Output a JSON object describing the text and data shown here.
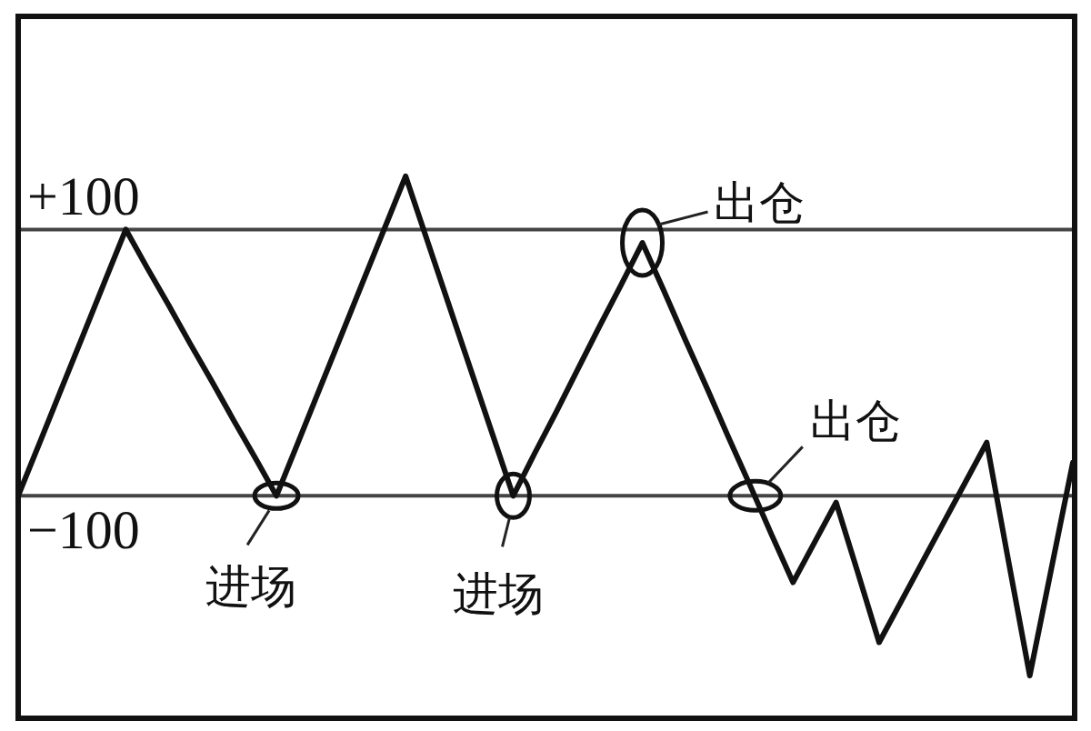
{
  "chart_data": {
    "type": "line",
    "categories": [
      null,
      null,
      null,
      null,
      null,
      null,
      null,
      null,
      null,
      null,
      null,
      null,
      null,
      null,
      null,
      null,
      null,
      null,
      null,
      null,
      null,
      null,
      null,
      null,
      null,
      null,
      null,
      null,
      null,
      null,
      null,
      null,
      null,
      null,
      null,
      null,
      null,
      null,
      null,
      null,
      null,
      null,
      null,
      null,
      null,
      null,
      null,
      null,
      null,
      null
    ],
    "series": [
      {
        "color": "#111111",
        "values": [
          -100,
          -60,
          -20,
          20,
          60,
          100,
          71,
          43,
          14,
          -14,
          -43,
          -71,
          -100,
          -60,
          -20,
          20,
          60,
          100,
          140,
          92,
          44,
          -4,
          -52,
          -100,
          -68,
          -37,
          -5,
          27,
          58,
          90,
          54,
          17,
          -19,
          -56,
          -92,
          -129,
          -165,
          -135,
          -105,
          -157,
          -210,
          -180,
          -150,
          -120,
          -90,
          -60,
          -148,
          -235,
          -155,
          -75
        ]
      }
    ],
    "ylim": [
      -267,
      260
    ],
    "ref_lines": [
      {
        "axis": "y",
        "value": 100,
        "label": "+100",
        "color": "#444444"
      },
      {
        "axis": "y",
        "value": -100,
        "label": "−100",
        "color": "#444444"
      }
    ],
    "annotations": [
      {
        "text": "进场",
        "y": -100
      },
      {
        "text": "进场",
        "y": -100
      },
      "出仓",
      {
        "text": "出仓",
        "y": -100
      }
    ]
  }
}
